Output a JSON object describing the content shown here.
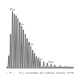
{
  "chart_data": {
    "type": "line",
    "caption": "C₁₀, C₁₂ ... C₃₀: number of carbon atoms of the separated n-alkanes",
    "x": [
      0,
      2.6,
      3,
      3.4,
      3.6,
      4,
      4.4,
      4.6,
      5,
      5.4,
      5.6,
      6,
      6.4,
      6.6,
      7,
      7.4,
      7.6,
      8,
      8.4,
      8.6,
      9,
      9.4,
      9.6,
      10,
      10.4,
      10.6,
      11,
      11.4,
      11.6,
      12,
      12.4,
      12.6,
      13,
      13.4,
      13.6,
      14,
      14.4,
      14.6,
      15,
      15.4,
      15.6,
      16,
      16.4,
      16.6,
      17,
      17.4,
      17.6,
      18,
      18.4,
      18.6,
      19,
      19.4,
      19.6,
      20,
      20.4,
      21.6,
      22,
      22.4,
      23.6,
      24,
      24.4,
      25.6,
      26,
      26.4,
      27.6,
      28,
      28.4,
      30.6,
      31,
      31.4,
      33.6,
      34,
      34.4,
      40
    ],
    "values": [
      1,
      1,
      20,
      1,
      1,
      55,
      1,
      1,
      92,
      1,
      1,
      88,
      1,
      1,
      85,
      1,
      1,
      80,
      1,
      1,
      74,
      1,
      1,
      68,
      1,
      1,
      62,
      1,
      1,
      55,
      1,
      1,
      48,
      1,
      1,
      42,
      1,
      1,
      35,
      1,
      1,
      29,
      1,
      1,
      24,
      1,
      1,
      19,
      1,
      1,
      15,
      1,
      1,
      12,
      1,
      1,
      10,
      1,
      1,
      8,
      1,
      1,
      6,
      1,
      1,
      5,
      1,
      1,
      4,
      1,
      1,
      3,
      1,
      1
    ],
    "color": "#333333",
    "xlim": [
      0,
      40
    ],
    "ylim": [
      0,
      100
    ],
    "tick_labels": false,
    "annotations": [
      {
        "text": "C₁₀",
        "x": 5,
        "y": 92
      },
      {
        "text": "C₁₅",
        "x": 10,
        "y": 68
      },
      {
        "text": "C₂₀",
        "x": 15,
        "y": 35
      },
      {
        "text": "C₂₅",
        "x": 20,
        "y": 12
      },
      {
        "text": "C₃₀",
        "x": 26,
        "y": 6
      }
    ]
  }
}
